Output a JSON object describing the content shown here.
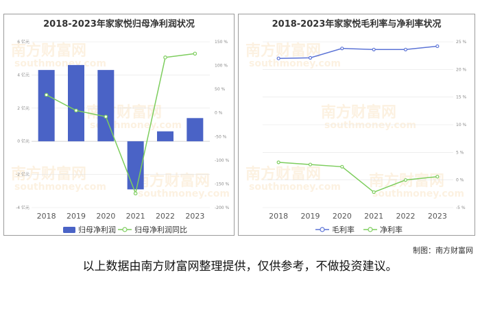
{
  "colors": {
    "bar": "#4a63c6",
    "green": "#7ccd5c",
    "blue": "#5b73d6",
    "grid": "#e3e3e3"
  },
  "watermark": {
    "text": "南方财富网",
    "subtext": "southmoney.com"
  },
  "credit": "制图：南方财富网",
  "disclaimer": "以上数据由南方财富网整理提供，仅供参考，不做投资建议。",
  "chart_data": [
    {
      "type": "bar",
      "title": "2018-2023年家家悦归母净利润状况",
      "categories": [
        "2018",
        "2019",
        "2020",
        "2021",
        "2022",
        "2023"
      ],
      "series": [
        {
          "name": "归母净利润",
          "type": "bar",
          "axis": "left",
          "values": [
            4.3,
            4.6,
            4.3,
            -2.9,
            0.6,
            1.4
          ]
        },
        {
          "name": "归母净利润同比",
          "type": "line",
          "axis": "right",
          "values": [
            38,
            5,
            -8,
            -170,
            117,
            125
          ]
        }
      ],
      "y_left": {
        "min": -4,
        "max": 6,
        "ticks": [
          -4,
          -2,
          0,
          2,
          4,
          6
        ],
        "tick_labels": [
          "-4 亿元",
          "-2 亿元",
          "0 亿元",
          "2 亿元",
          "4 亿元",
          "6 亿元"
        ]
      },
      "y_right": {
        "min": -200,
        "max": 150,
        "ticks": [
          -200,
          -150,
          -100,
          -50,
          0,
          50,
          100,
          150
        ],
        "tick_labels": [
          "-200 %",
          "-150 %",
          "-100 %",
          "-50 %",
          "0 %",
          "50 %",
          "100 %",
          "150 %"
        ]
      },
      "legend": "bottom",
      "grid": true
    },
    {
      "type": "line",
      "title": "2018-2023年家家悦毛利率与净利率状况",
      "categories": [
        "2018",
        "2019",
        "2020",
        "2021",
        "2022",
        "2023"
      ],
      "series": [
        {
          "name": "毛利率",
          "values": [
            22.0,
            22.1,
            23.8,
            23.6,
            23.6,
            24.2
          ]
        },
        {
          "name": "净利率",
          "values": [
            3.2,
            2.8,
            2.4,
            -2.2,
            0.0,
            0.6
          ]
        }
      ],
      "y": {
        "min": -5,
        "max": 25,
        "ticks": [
          -5,
          0,
          5,
          10,
          15,
          20,
          25
        ],
        "tick_labels": [
          "-5 %",
          "0 %",
          "5 %",
          "10 %",
          "15 %",
          "20 %",
          "25 %"
        ]
      },
      "legend": "bottom",
      "grid": true
    }
  ]
}
